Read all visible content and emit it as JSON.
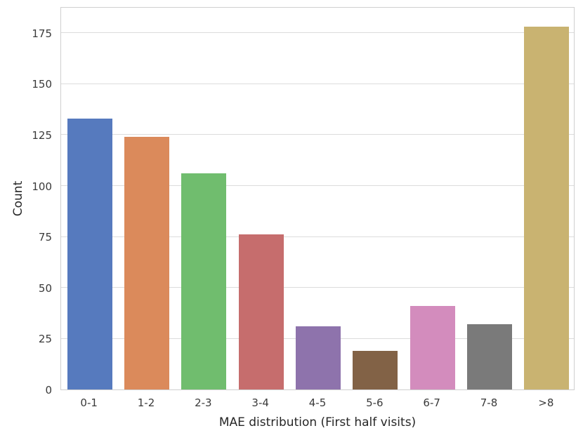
{
  "chart_data": {
    "type": "bar",
    "title": "",
    "xlabel": "MAE distribution (First half visits)",
    "ylabel": "Count",
    "categories": [
      "0-1",
      "1-2",
      "2-3",
      "3-4",
      "4-5",
      "5-6",
      "6-7",
      "7-8",
      ">8"
    ],
    "values": [
      133,
      124,
      106,
      76,
      31,
      19,
      41,
      32,
      178
    ],
    "bar_colors": [
      "#567ABE",
      "#DB8A5B",
      "#70BD6E",
      "#C66D6D",
      "#8E73AC",
      "#826246",
      "#D38CBD",
      "#7A7A7A",
      "#C9B371"
    ],
    "yticks": [
      0,
      25,
      50,
      75,
      100,
      125,
      150,
      175
    ],
    "ylim": [
      0,
      188
    ],
    "grid": true,
    "legend_position": "none",
    "style": {
      "background": "#ffffff",
      "grid_color": "#dcdcdc",
      "spine_color": "#cfcfcf",
      "tick_label_color": "#3a3a3a",
      "axis_label_color": "#262626"
    }
  }
}
